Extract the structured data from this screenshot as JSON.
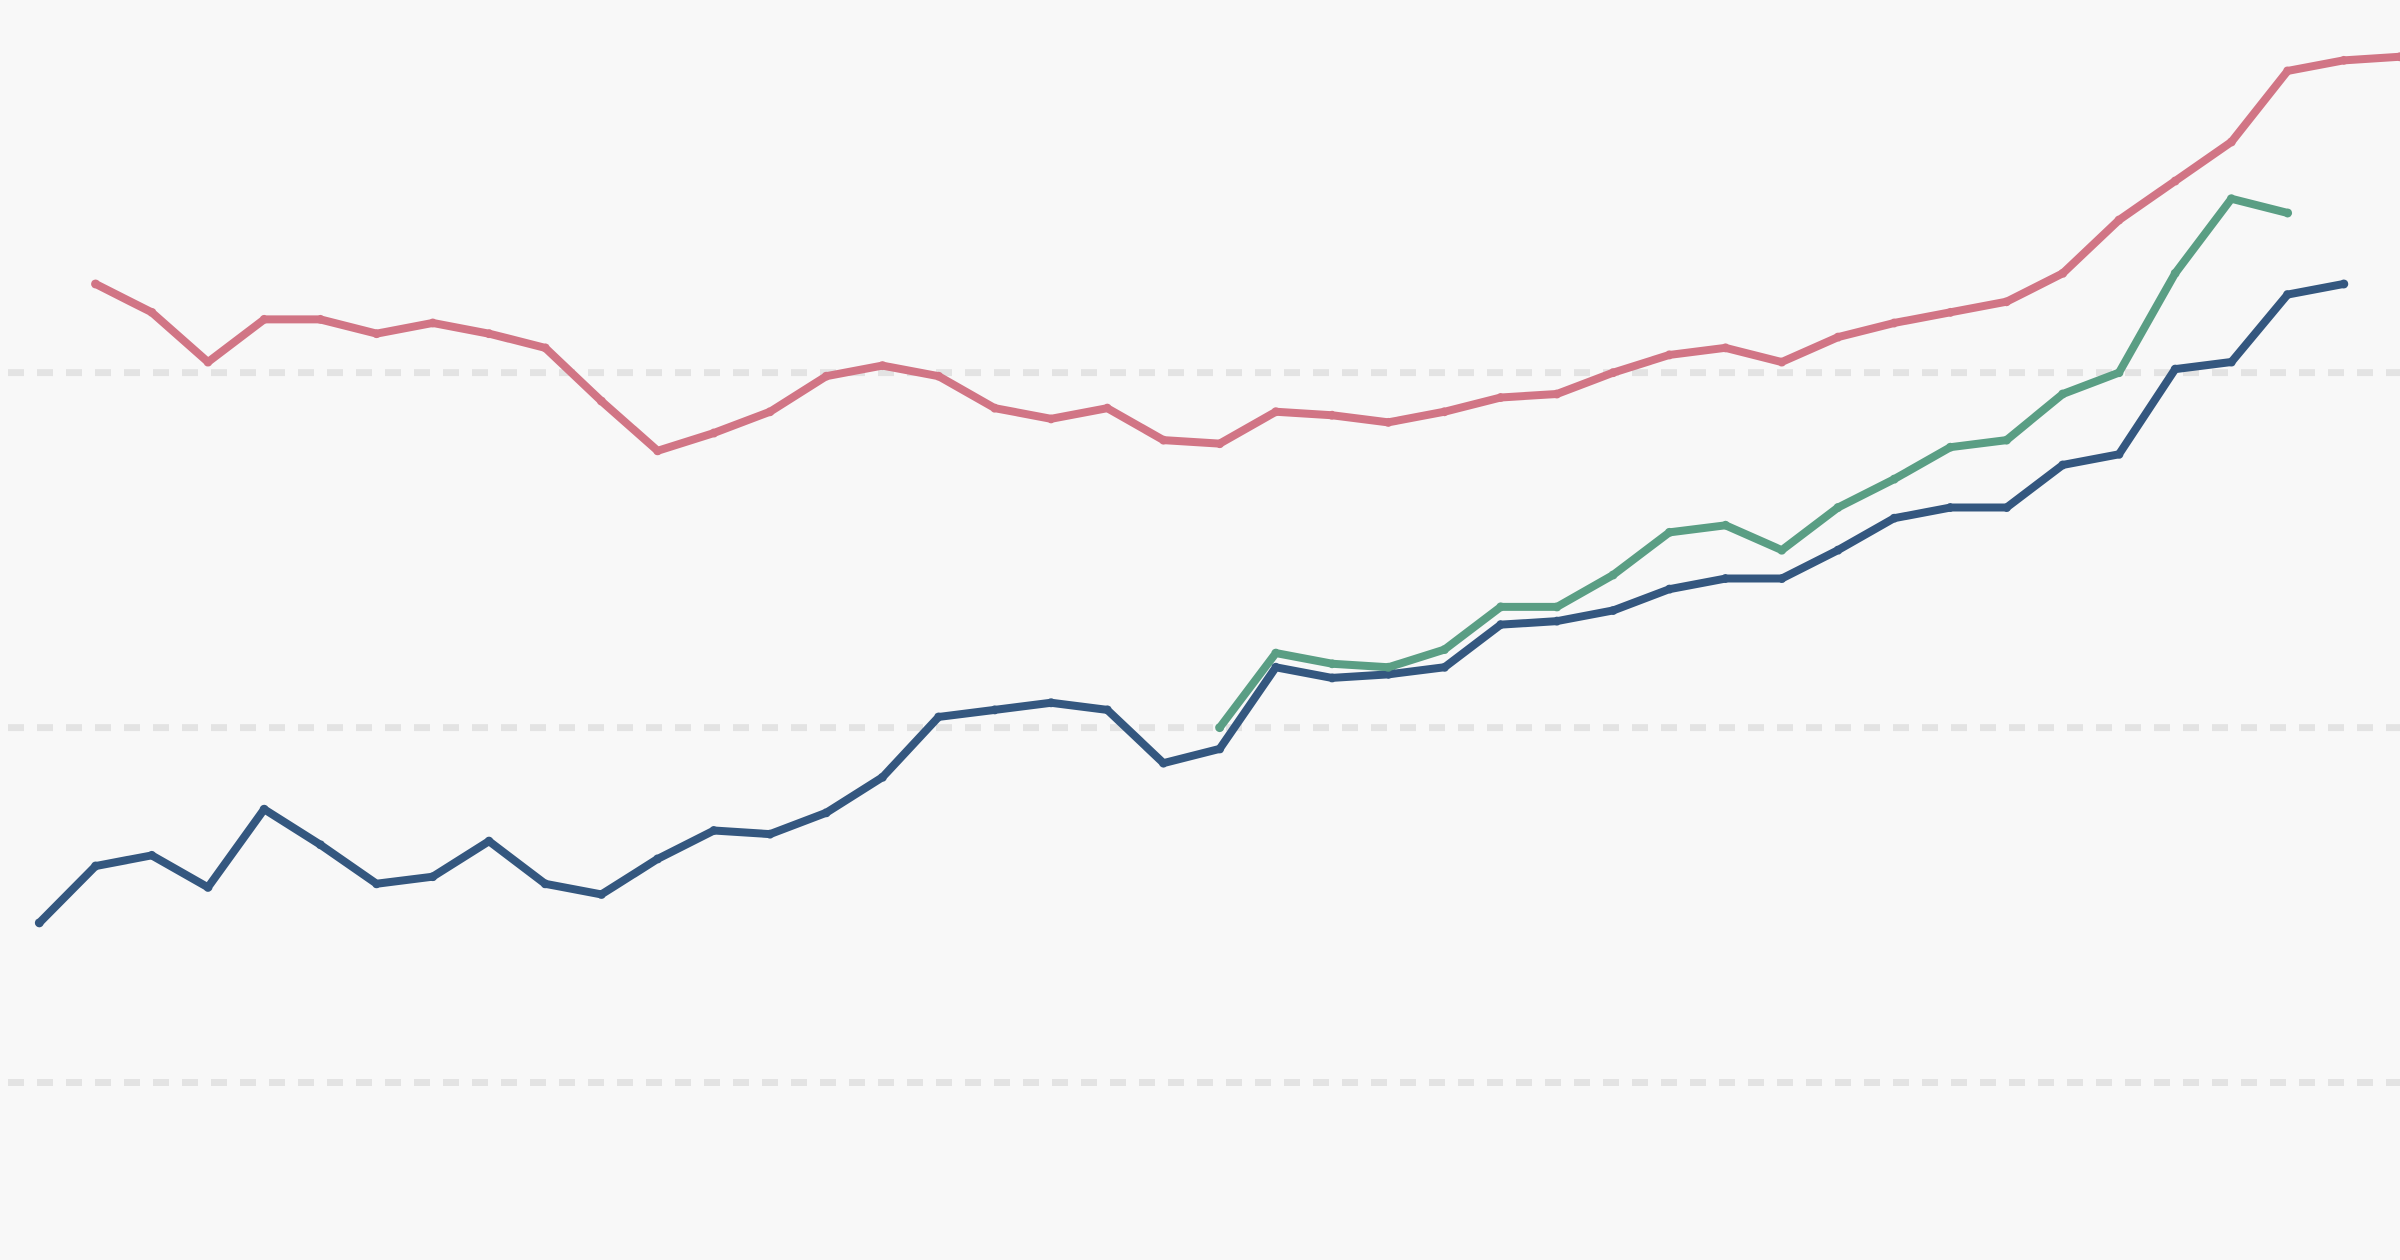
{
  "chart_data": {
    "type": "line",
    "title": "",
    "xlabel": "",
    "ylabel": "",
    "grid": true,
    "gridlines": [
      0,
      1,
      2
    ],
    "ylim": [
      -0.5,
      3.05
    ],
    "xlim": [
      -1.7,
      41
    ],
    "background": "#f8f8f8",
    "series": [
      {
        "color": "#d17585",
        "x_start": 0,
        "values": [
          2.25,
          2.17,
          2.03,
          2.15,
          2.15,
          2.11,
          2.14,
          2.11,
          2.07,
          1.92,
          1.78,
          1.83,
          1.89,
          1.99,
          2.02,
          1.99,
          1.9,
          1.87,
          1.9,
          1.81,
          1.8,
          1.89,
          1.88,
          1.86,
          1.89,
          1.93,
          1.94,
          2.0,
          2.05,
          2.07,
          2.03,
          2.1,
          2.14,
          2.17,
          2.2,
          2.28,
          2.43,
          2.54,
          2.65,
          2.85,
          2.88,
          2.89
        ]
      },
      {
        "color": "#34577f",
        "x_start": -1,
        "values": [
          0.45,
          0.61,
          0.64,
          0.55,
          0.77,
          0.67,
          0.56,
          0.58,
          0.68,
          0.56,
          0.53,
          0.63,
          0.71,
          0.7,
          0.76,
          0.86,
          1.03,
          1.05,
          1.07,
          1.05,
          0.9,
          0.94,
          1.17,
          1.14,
          1.15,
          1.17,
          1.29,
          1.3,
          1.33,
          1.39,
          1.42,
          1.42,
          1.5,
          1.59,
          1.62,
          1.62,
          1.74,
          1.77,
          2.01,
          2.03,
          2.22,
          2.25
        ]
      },
      {
        "color": "#5a9e84",
        "x_start": 20,
        "values": [
          1.0,
          1.21,
          1.18,
          1.17,
          1.22,
          1.34,
          1.34,
          1.43,
          1.55,
          1.57,
          1.5,
          1.62,
          1.7,
          1.79,
          1.81,
          1.94,
          2.0,
          2.28,
          2.49,
          2.45
        ]
      }
    ]
  }
}
